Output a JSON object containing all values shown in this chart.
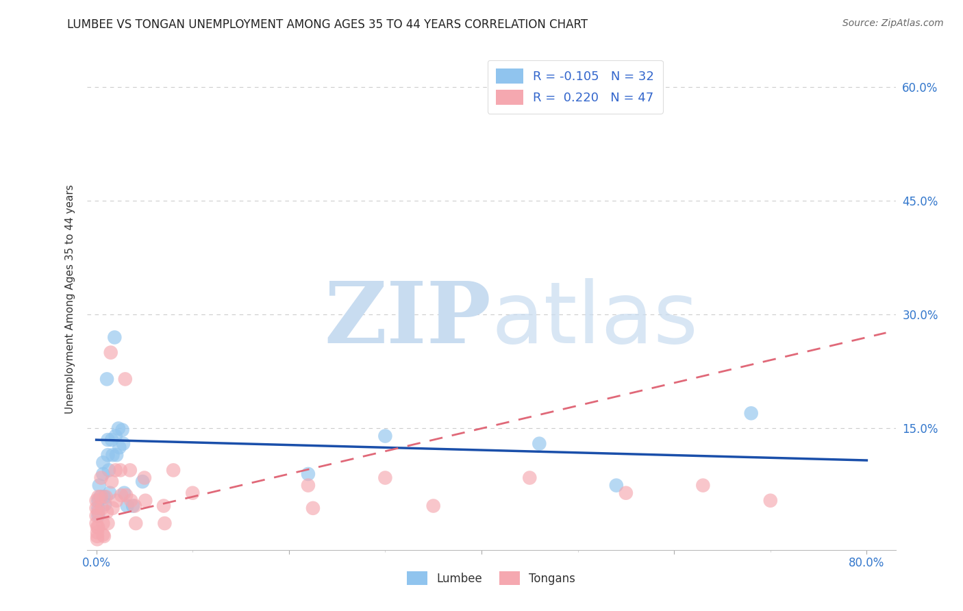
{
  "title": "LUMBEE VS TONGAN UNEMPLOYMENT AMONG AGES 35 TO 44 YEARS CORRELATION CHART",
  "source": "Source: ZipAtlas.com",
  "ylabel": "Unemployment Among Ages 35 to 44 years",
  "xlim": [
    -0.01,
    0.83
  ],
  "ylim": [
    -0.01,
    0.65
  ],
  "lumbee_R": "-0.105",
  "lumbee_N": "32",
  "tongan_R": "0.220",
  "tongan_N": "47",
  "lumbee_color": "#90C4EE",
  "tongan_color": "#F5A8B0",
  "lumbee_line_color": "#1A4FAA",
  "tongan_line_color": "#E06878",
  "background_color": "#FFFFFF",
  "grid_color": "#CCCCCC",
  "lumbee_x": [
    0.002,
    0.002,
    0.002,
    0.003,
    0.004,
    0.007,
    0.007,
    0.008,
    0.009,
    0.011,
    0.012,
    0.012,
    0.013,
    0.014,
    0.016,
    0.017,
    0.019,
    0.02,
    0.021,
    0.023,
    0.024,
    0.027,
    0.028,
    0.029,
    0.032,
    0.038,
    0.048,
    0.22,
    0.3,
    0.46,
    0.54,
    0.68
  ],
  "lumbee_y": [
    0.055,
    0.045,
    0.035,
    0.075,
    0.06,
    0.105,
    0.09,
    0.06,
    0.05,
    0.215,
    0.135,
    0.115,
    0.095,
    0.065,
    0.135,
    0.115,
    0.27,
    0.14,
    0.115,
    0.15,
    0.125,
    0.148,
    0.13,
    0.065,
    0.048,
    0.048,
    0.08,
    0.09,
    0.14,
    0.13,
    0.075,
    0.17
  ],
  "tongan_x": [
    0.0,
    0.0,
    0.0,
    0.0,
    0.001,
    0.001,
    0.001,
    0.001,
    0.002,
    0.002,
    0.002,
    0.005,
    0.005,
    0.006,
    0.007,
    0.007,
    0.008,
    0.01,
    0.011,
    0.012,
    0.015,
    0.016,
    0.017,
    0.02,
    0.021,
    0.025,
    0.026,
    0.03,
    0.031,
    0.035,
    0.036,
    0.04,
    0.041,
    0.05,
    0.051,
    0.07,
    0.071,
    0.08,
    0.1,
    0.22,
    0.225,
    0.3,
    0.35,
    0.45,
    0.55,
    0.63,
    0.7
  ],
  "tongan_y": [
    0.055,
    0.045,
    0.035,
    0.025,
    0.02,
    0.013,
    0.008,
    0.004,
    0.06,
    0.04,
    0.02,
    0.085,
    0.06,
    0.045,
    0.025,
    0.01,
    0.008,
    0.06,
    0.04,
    0.025,
    0.25,
    0.08,
    0.045,
    0.095,
    0.055,
    0.095,
    0.062,
    0.215,
    0.062,
    0.095,
    0.055,
    0.048,
    0.025,
    0.085,
    0.055,
    0.048,
    0.025,
    0.095,
    0.065,
    0.075,
    0.045,
    0.085,
    0.048,
    0.085,
    0.065,
    0.075,
    0.055
  ]
}
